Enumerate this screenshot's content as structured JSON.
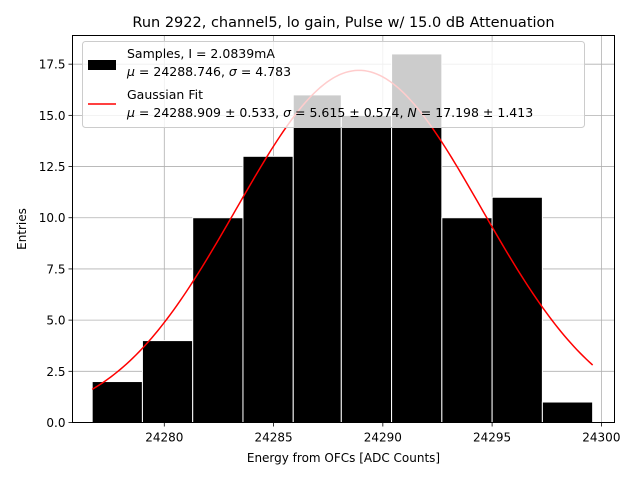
{
  "chart_data": {
    "type": "bar",
    "title": "Run 2922, channel5, lo gain, Pulse w/ 15.0 dB Attenuation",
    "xlabel": "Energy from OFCs [ADC Counts]",
    "ylabel": "Entries",
    "xlim": [
      24275.8,
      24300.6
    ],
    "ylim": [
      0,
      18.9
    ],
    "xticks": [
      24280,
      24285,
      24290,
      24295,
      24300
    ],
    "xtick_labels": [
      "24280",
      "24285",
      "24290",
      "24295",
      "24300"
    ],
    "yticks": [
      0,
      2.5,
      5,
      7.5,
      10,
      12.5,
      15,
      17.5
    ],
    "ytick_labels": [
      "0.0",
      "2.5",
      "5.0",
      "7.5",
      "10.0",
      "12.5",
      "15.0",
      "17.5"
    ],
    "grid": true,
    "legend_position": "top",
    "histogram": {
      "bin_edges": [
        24276.7,
        24279.0,
        24281.3,
        24283.6,
        24285.9,
        24288.1,
        24290.4,
        24292.7,
        24295.0,
        24297.3,
        24299.6
      ],
      "counts": [
        2,
        4,
        10,
        13,
        16,
        15,
        18,
        10,
        11,
        1
      ],
      "color": "#000000",
      "edge_color": "#ffffff"
    },
    "fit": {
      "mu": 24288.909,
      "sigma": 5.615,
      "N": 17.198,
      "x_range": [
        24276.7,
        24299.6
      ],
      "color": "#ff0000"
    },
    "series": [
      {
        "name": "Samples, I = 2.0839mA",
        "stats_line": {
          "mu_label": "μ",
          "mu_value": " = 24288.746, ",
          "sigma_label": "σ",
          "sigma_value": " = 4.783"
        }
      },
      {
        "name": "Gaussian Fit",
        "stats_line": {
          "mu_label": "μ",
          "mu_value": " = 24288.909 ± 0.533, ",
          "sigma_label": "σ",
          "sigma_value": " = 5.615 ± 0.574, ",
          "n_label": "N",
          "n_value": " = 17.198 ± 1.413"
        }
      }
    ]
  }
}
